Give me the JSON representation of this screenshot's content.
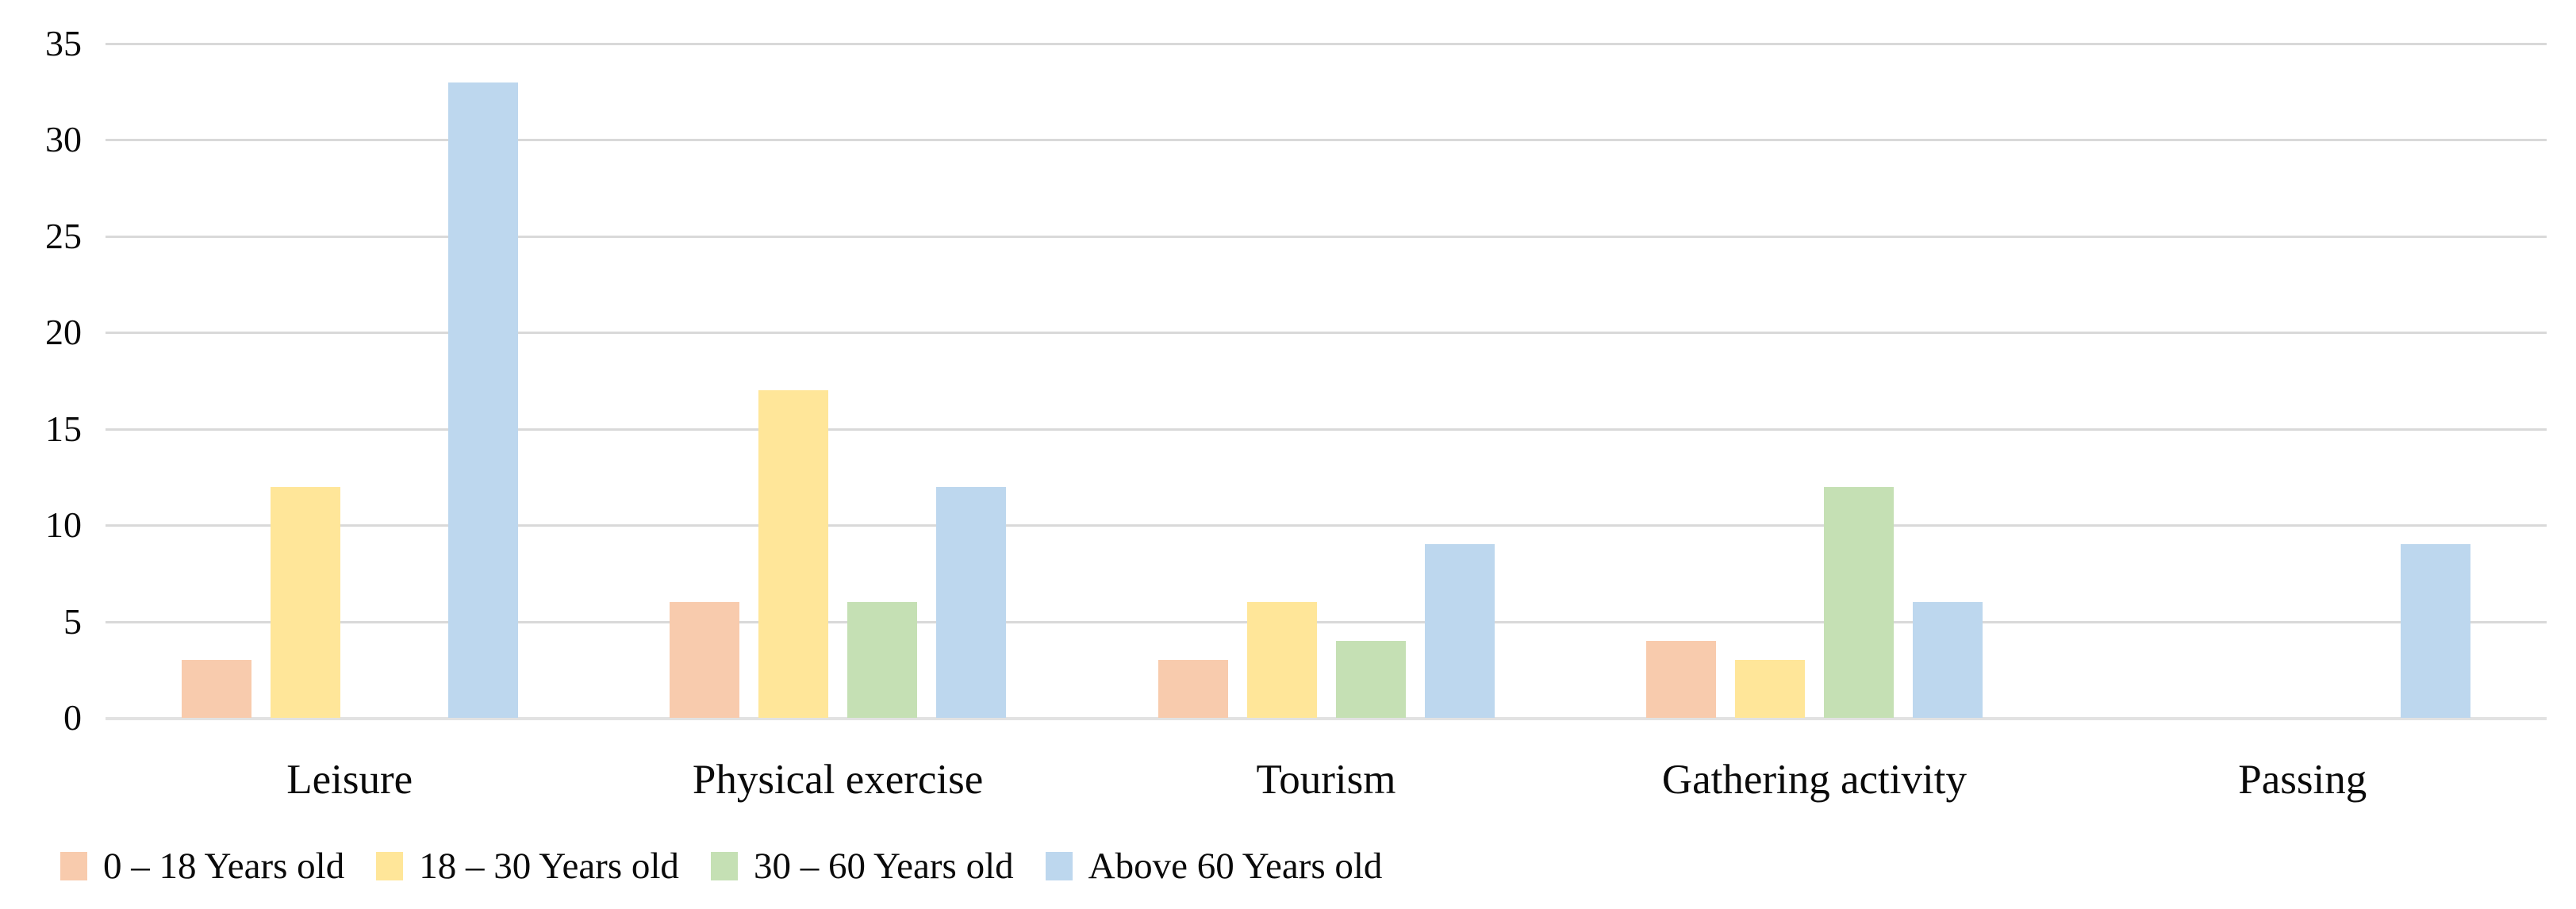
{
  "chart_data": {
    "type": "bar",
    "title": "",
    "xlabel": "",
    "ylabel": "",
    "categories": [
      "Leisure",
      "Physical exercise",
      "Tourism",
      "Gathering activity",
      "Passing"
    ],
    "series": [
      {
        "name": "0 – 18 Years old",
        "color": "#F8CBAD",
        "values": [
          3,
          6,
          3,
          4,
          0
        ]
      },
      {
        "name": "18 – 30 Years old",
        "color": "#FFE699",
        "values": [
          12,
          17,
          6,
          3,
          0
        ]
      },
      {
        "name": "30 – 60 Years old",
        "color": "#C5E0B4",
        "values": [
          0,
          6,
          4,
          12,
          0
        ]
      },
      {
        "name": "Above 60 Years old",
        "color": "#BDD7EE",
        "values": [
          33,
          12,
          9,
          6,
          9
        ]
      }
    ],
    "ylim": [
      0,
      35
    ],
    "yticks": [
      0,
      5,
      10,
      15,
      20,
      25,
      30,
      35
    ],
    "grid": "horizontal",
    "gridline_color": "#D9D9D9",
    "text_color": "#000000",
    "legend_position": "bottom-left",
    "background_color": "#FFFFFF"
  }
}
